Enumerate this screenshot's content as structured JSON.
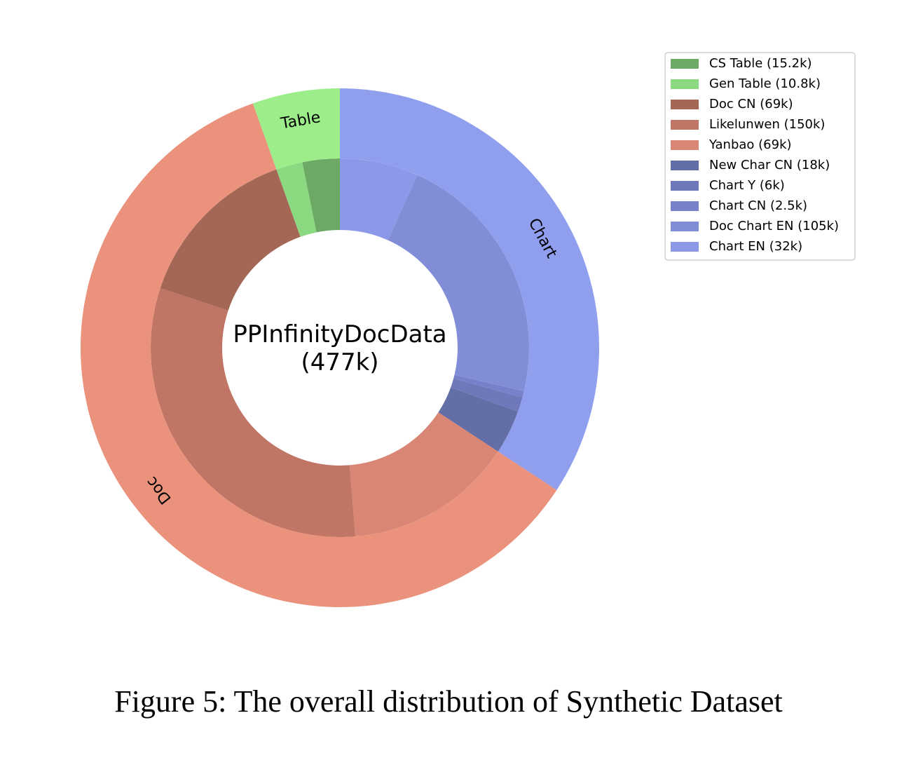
{
  "chart_data": {
    "type": "pie",
    "variant": "nested-donut",
    "center_label": {
      "line1": "PPInfinityDocData",
      "line2": "(477k)"
    },
    "outer": [
      {
        "label": "Chart",
        "color": "#909EEE"
      },
      {
        "label": "Doc",
        "color": "#EB927D"
      },
      {
        "label": "Table",
        "color": "#9DEE8A"
      }
    ],
    "inner": [
      {
        "legend": "Chart EN (32k)",
        "group": "Chart",
        "value": 32,
        "color": "#8C99E8"
      },
      {
        "legend": "Doc Chart EN (105k)",
        "group": "Chart",
        "value": 105,
        "color": "#818DD6"
      },
      {
        "legend": "Chart CN (2.5k)",
        "group": "Chart",
        "value": 2.5,
        "color": "#7780CB"
      },
      {
        "legend": "Chart Y (6k)",
        "group": "Chart",
        "value": 6,
        "color": "#6F78BB"
      },
      {
        "legend": "New Char CN (18k)",
        "group": "Chart",
        "value": 18,
        "color": "#636DA6"
      },
      {
        "legend": "Yanbao (69k)",
        "group": "Doc",
        "value": 69,
        "color": "#D98774"
      },
      {
        "legend": "Likelunwen (150k)",
        "group": "Doc",
        "value": 150,
        "color": "#C07565"
      },
      {
        "legend": "Doc CN (69k)",
        "group": "Doc",
        "value": 69,
        "color": "#A46655"
      },
      {
        "legend": "Gen Table (10.8k)",
        "group": "Table",
        "value": 10.8,
        "color": "#8BD980"
      },
      {
        "legend": "CS Table (15.2k)",
        "group": "Table",
        "value": 15.2,
        "color": "#6BA965"
      }
    ],
    "legend_order": [
      "CS Table (15.2k)",
      "Gen Table (10.8k)",
      "Doc CN (69k)",
      "Likelunwen (150k)",
      "Yanbao (69k)",
      "New Char CN (18k)",
      "Chart Y (6k)",
      "Chart CN (2.5k)",
      "Doc Chart EN (105k)",
      "Chart EN (32k)"
    ],
    "legend_position": "top-right",
    "start": "top",
    "direction": "clockwise"
  },
  "caption": "Figure 5: The overall distribution of Synthetic Dataset"
}
